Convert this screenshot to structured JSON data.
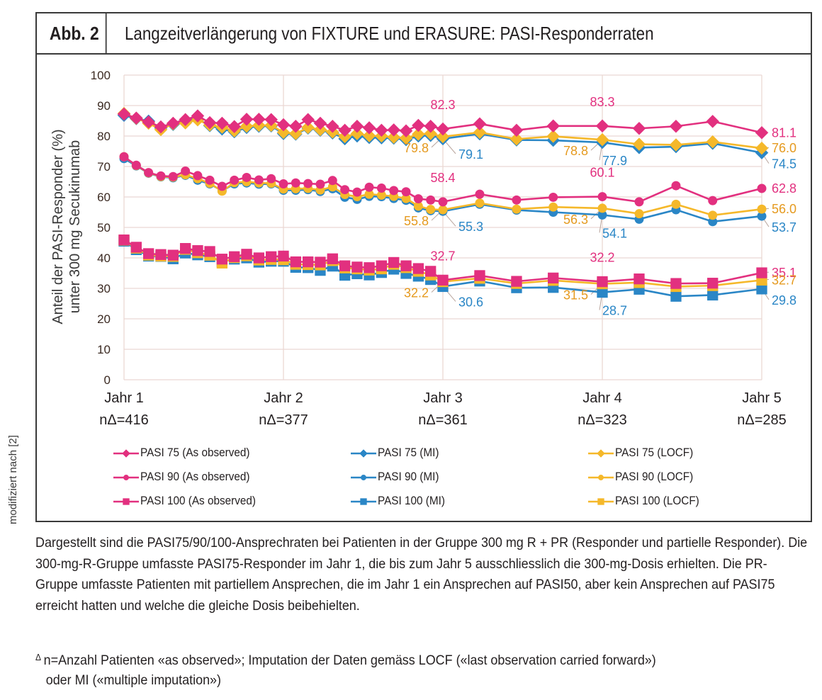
{
  "figure": {
    "label": "Abb. 2",
    "title": "Langzeitverlängerung von FIXTURE und ERASURE: PASI-Responderraten",
    "side_note": "modifiziert nach [2]"
  },
  "caption": "Dargestellt sind die PASI75/90/100-Ansprechraten bei Patienten in der Gruppe 300 mg R + PR (Responder und partielle Responder). Die 300-mg-R-Gruppe umfasste PASI75-Responder im Jahr 1, die bis zum Jahr 5 ausschliesslich die 300-mg-Dosis erhielten. Die PR-Gruppe umfasste Patienten mit partiellem Ansprechen, die im Jahr 1 ein Ansprechen auf PASI50, aber kein Ansprechen auf PASI75 erreicht hatten und welche die gleiche Dosis beibehielten.",
  "footnote": {
    "mark": "Δ",
    "line1": "n=Anzahl Patienten «as observed»; Imputation der Daten gemäss LOCF («last observation carried forward»)",
    "line2": "oder MI («multiple imputation»)"
  },
  "colors": {
    "as_observed": "#e2307f",
    "mi": "#2a86c6",
    "locf": "#f5b82a",
    "locf_label": "#e59a1f",
    "grid": "#ead8d3",
    "axis_text": "#3b2a22"
  },
  "chart_data": {
    "type": "line",
    "title": "Langzeitverlängerung von FIXTURE und ERASURE: PASI-Responderraten",
    "xlabel": "",
    "ylabel": "Anteil der PASI-Responder (%) unter 300 mg Secukinumab",
    "ylabel_lines": [
      "Anteil der PASI-Responder (%)",
      "unter 300 mg Secukinumab"
    ],
    "ylim": [
      0,
      100
    ],
    "yticks": [
      0,
      10,
      20,
      30,
      40,
      50,
      60,
      70,
      80,
      90,
      100
    ],
    "xlim": [
      1,
      5
    ],
    "xticks": [
      {
        "x": 1,
        "label": "Jahr 1",
        "n": "nΔ=416"
      },
      {
        "x": 2,
        "label": "Jahr 2",
        "n": "nΔ=377"
      },
      {
        "x": 3,
        "label": "Jahr 3",
        "n": "nΔ=361"
      },
      {
        "x": 4,
        "label": "Jahr 4",
        "n": "nΔ=323"
      },
      {
        "x": 5,
        "label": "Jahr 5",
        "n": "nΔ=285"
      }
    ],
    "grid": true,
    "legend_position": "bottom",
    "x": [
      1,
      1.077,
      1.154,
      1.231,
      1.308,
      1.385,
      1.462,
      1.538,
      1.615,
      1.692,
      1.769,
      1.846,
      1.923,
      2,
      2.077,
      2.154,
      2.231,
      2.308,
      2.385,
      2.462,
      2.538,
      2.615,
      2.692,
      2.769,
      2.846,
      2.923,
      3,
      3.231,
      3.462,
      3.692,
      4,
      4.231,
      4.462,
      4.692,
      5
    ],
    "series": [
      {
        "name": "PASI 75 (As observed)",
        "method": "as_observed",
        "marker": "diamond",
        "values": [
          87.2,
          85.9,
          84.6,
          83.0,
          84.2,
          85.4,
          86.6,
          84.4,
          84.2,
          83.1,
          85.5,
          85.5,
          85.4,
          83.7,
          83.2,
          85.4,
          84.2,
          83.2,
          81.9,
          83.2,
          82.7,
          81.9,
          82.0,
          81.7,
          83.5,
          83.2,
          82.3,
          84.0,
          81.9,
          83.3,
          83.3,
          82.5,
          83.2,
          84.8,
          81.1
        ]
      },
      {
        "name": "PASI 75 (MI)",
        "method": "mi",
        "marker": "diamond",
        "values": [
          86.8,
          85.7,
          84.9,
          82.6,
          83.8,
          84.4,
          85.6,
          83.4,
          82.3,
          81.4,
          82.8,
          83.2,
          83.3,
          80.8,
          80.6,
          82.6,
          81.9,
          81.0,
          79.1,
          80.0,
          79.5,
          79.4,
          79.3,
          78.8,
          80.0,
          80.2,
          79.1,
          80.7,
          78.7,
          78.6,
          77.9,
          76.2,
          76.5,
          77.6,
          74.5
        ]
      },
      {
        "name": "PASI 75 (LOCF)",
        "method": "locf",
        "marker": "diamond",
        "values": [
          87.4,
          85.8,
          84.2,
          82.1,
          84.0,
          84.3,
          85.3,
          83.6,
          82.9,
          81.7,
          83.2,
          83.5,
          83.5,
          81.2,
          80.8,
          82.8,
          82.1,
          81.3,
          79.8,
          80.8,
          80.1,
          80.0,
          79.6,
          79.3,
          80.6,
          80.8,
          79.8,
          81.2,
          79.0,
          79.9,
          78.8,
          77.3,
          77.1,
          78.1,
          76.0
        ]
      },
      {
        "name": "PASI 90 (As observed)",
        "method": "as_observed",
        "marker": "circle",
        "values": [
          73.2,
          70.4,
          68.0,
          66.9,
          66.7,
          68.5,
          67.0,
          65.5,
          63.5,
          65.5,
          66.4,
          65.6,
          66.0,
          64.3,
          64.6,
          64.4,
          64.2,
          65.4,
          62.4,
          61.6,
          63.2,
          62.9,
          62.1,
          61.7,
          59.4,
          59.0,
          58.4,
          60.9,
          59.0,
          59.9,
          60.1,
          58.4,
          63.7,
          58.8,
          62.8
        ]
      },
      {
        "name": "PASI 90 (MI)",
        "method": "mi",
        "marker": "circle",
        "values": [
          72.6,
          70.2,
          67.8,
          66.6,
          66.3,
          67.1,
          65.5,
          64.3,
          62.0,
          64.3,
          64.6,
          64.2,
          64.3,
          62.2,
          62.2,
          62.4,
          61.8,
          62.7,
          59.9,
          59.2,
          60.2,
          60.1,
          59.5,
          58.9,
          56.4,
          55.5,
          55.3,
          57.6,
          55.7,
          55.0,
          54.1,
          52.7,
          55.8,
          51.9,
          53.7
        ]
      },
      {
        "name": "PASI 90 (LOCF)",
        "method": "locf",
        "marker": "circle",
        "values": [
          73.2,
          70.3,
          67.9,
          66.7,
          66.5,
          67.3,
          66.0,
          64.5,
          61.9,
          64.7,
          65.0,
          64.6,
          64.5,
          62.6,
          62.7,
          62.8,
          62.3,
          63.3,
          60.8,
          60.1,
          60.9,
          60.6,
          60.2,
          59.5,
          57.0,
          55.9,
          55.8,
          58.0,
          56.0,
          56.7,
          56.3,
          54.5,
          57.6,
          54.0,
          56.0
        ]
      },
      {
        "name": "PASI 100 (As observed)",
        "method": "as_observed",
        "marker": "square",
        "values": [
          45.9,
          43.5,
          41.4,
          41.1,
          40.9,
          43.1,
          42.4,
          42.1,
          39.6,
          40.4,
          41.2,
          40.0,
          40.4,
          40.6,
          38.7,
          38.7,
          38.6,
          39.7,
          37.4,
          37.0,
          36.8,
          37.4,
          38.5,
          37.4,
          36.5,
          35.6,
          32.7,
          34.2,
          32.3,
          33.4,
          32.2,
          33.1,
          31.6,
          31.7,
          35.1
        ]
      },
      {
        "name": "PASI 100 (MI)",
        "method": "mi",
        "marker": "square",
        "values": [
          45.5,
          42.7,
          40.6,
          40.5,
          39.7,
          41.6,
          41.0,
          40.4,
          38.7,
          39.6,
          40.0,
          38.6,
          38.9,
          38.9,
          36.9,
          36.8,
          35.9,
          37.3,
          34.3,
          34.8,
          34.4,
          35.2,
          36.3,
          34.9,
          34.0,
          32.9,
          30.6,
          32.4,
          30.2,
          30.3,
          28.7,
          29.7,
          27.4,
          27.8,
          29.8
        ]
      },
      {
        "name": "PASI 100 (LOCF)",
        "method": "locf",
        "marker": "square",
        "values": [
          45.8,
          43.2,
          40.9,
          40.6,
          40.5,
          42.8,
          41.7,
          40.9,
          38.3,
          40.1,
          40.7,
          39.3,
          39.5,
          39.4,
          37.9,
          37.8,
          37.7,
          39.1,
          36.7,
          36.4,
          36.0,
          36.4,
          37.9,
          36.8,
          35.6,
          34.4,
          32.2,
          33.3,
          31.6,
          32.6,
          31.5,
          31.9,
          30.6,
          30.9,
          32.7
        ]
      }
    ],
    "annotations": [
      {
        "text": "82.3",
        "series": "PASI 75 (As observed)",
        "x": 3,
        "color": "as_observed"
      },
      {
        "text": "79.8",
        "series": "PASI 75 (LOCF)",
        "x": 3,
        "color": "locf"
      },
      {
        "text": "79.1",
        "series": "PASI 75 (MI)",
        "x": 3,
        "color": "mi"
      },
      {
        "text": "83.3",
        "series": "PASI 75 (As observed)",
        "x": 4,
        "color": "as_observed"
      },
      {
        "text": "78.8",
        "series": "PASI 75 (LOCF)",
        "x": 4,
        "color": "locf"
      },
      {
        "text": "77.9",
        "series": "PASI 75 (MI)",
        "x": 4,
        "color": "mi"
      },
      {
        "text": "81.1",
        "series": "PASI 75 (As observed)",
        "x": 5,
        "color": "as_observed"
      },
      {
        "text": "76.0",
        "series": "PASI 75 (LOCF)",
        "x": 5,
        "color": "locf"
      },
      {
        "text": "74.5",
        "series": "PASI 75 (MI)",
        "x": 5,
        "color": "mi"
      },
      {
        "text": "58.4",
        "series": "PASI 90 (As observed)",
        "x": 3,
        "color": "as_observed"
      },
      {
        "text": "55.8",
        "series": "PASI 90 (LOCF)",
        "x": 3,
        "color": "locf"
      },
      {
        "text": "55.3",
        "series": "PASI 90 (MI)",
        "x": 3,
        "color": "mi"
      },
      {
        "text": "60.1",
        "series": "PASI 90 (As observed)",
        "x": 4,
        "color": "as_observed"
      },
      {
        "text": "56.3",
        "series": "PASI 90 (LOCF)",
        "x": 4,
        "color": "locf"
      },
      {
        "text": "54.1",
        "series": "PASI 90 (MI)",
        "x": 4,
        "color": "mi"
      },
      {
        "text": "62.8",
        "series": "PASI 90 (As observed)",
        "x": 5,
        "color": "as_observed"
      },
      {
        "text": "56.0",
        "series": "PASI 90 (LOCF)",
        "x": 5,
        "color": "locf"
      },
      {
        "text": "53.7",
        "series": "PASI 90 (MI)",
        "x": 5,
        "color": "mi"
      },
      {
        "text": "32.7",
        "series": "PASI 100 (As observed)",
        "x": 3,
        "color": "as_observed"
      },
      {
        "text": "32.2",
        "series": "PASI 100 (LOCF)",
        "x": 3,
        "color": "locf"
      },
      {
        "text": "30.6",
        "series": "PASI 100 (MI)",
        "x": 3,
        "color": "mi"
      },
      {
        "text": "32.2",
        "series": "PASI 100 (As observed)",
        "x": 4,
        "color": "as_observed"
      },
      {
        "text": "31.5",
        "series": "PASI 100 (LOCF)",
        "x": 4,
        "color": "locf"
      },
      {
        "text": "28.7",
        "series": "PASI 100 (MI)",
        "x": 4,
        "color": "mi"
      },
      {
        "text": "35.1",
        "series": "PASI 100 (As observed)",
        "x": 5,
        "color": "as_observed"
      },
      {
        "text": "32.7",
        "series": "PASI 100 (LOCF)",
        "x": 5,
        "color": "locf"
      },
      {
        "text": "29.8",
        "series": "PASI 100 (MI)",
        "x": 5,
        "color": "mi"
      }
    ],
    "legend": [
      {
        "label": "PASI 75 (As observed)",
        "method": "as_observed",
        "marker": "diamond"
      },
      {
        "label": "PASI 75 (MI)",
        "method": "mi",
        "marker": "diamond"
      },
      {
        "label": "PASI 75 (LOCF)",
        "method": "locf",
        "marker": "diamond"
      },
      {
        "label": "PASI 90 (As observed)",
        "method": "as_observed",
        "marker": "circle"
      },
      {
        "label": "PASI 90 (MI)",
        "method": "mi",
        "marker": "circle"
      },
      {
        "label": "PASI 90 (LOCF)",
        "method": "locf",
        "marker": "circle"
      },
      {
        "label": "PASI 100 (As observed)",
        "method": "as_observed",
        "marker": "square"
      },
      {
        "label": "PASI 100 (MI)",
        "method": "mi",
        "marker": "square"
      },
      {
        "label": "PASI 100 (LOCF)",
        "method": "locf",
        "marker": "square"
      }
    ]
  }
}
